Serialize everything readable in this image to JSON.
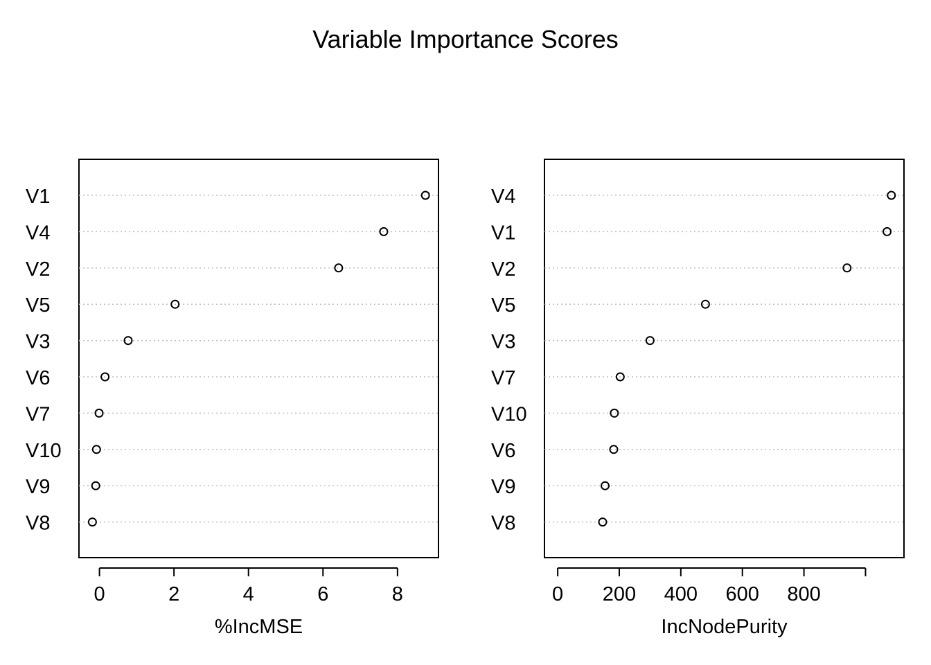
{
  "figure": {
    "title": "Variable Importance Scores"
  },
  "chart_data": [
    {
      "type": "scatter",
      "title": "",
      "xlabel": "%IncMSE",
      "ylabel": "",
      "categories": [
        "V1",
        "V4",
        "V2",
        "V5",
        "V3",
        "V6",
        "V7",
        "V10",
        "V9",
        "V8"
      ],
      "values": [
        8.75,
        7.63,
        6.42,
        2.03,
        0.77,
        0.15,
        -0.01,
        -0.08,
        -0.1,
        -0.19
      ],
      "xlim": [
        -0.55,
        9.1
      ],
      "xticks": [
        0,
        2,
        4,
        6,
        8
      ],
      "grid": "dotted horizontal per category",
      "marker": "open circle"
    },
    {
      "type": "scatter",
      "title": "",
      "xlabel": "IncNodePurity",
      "ylabel": "",
      "categories": [
        "V4",
        "V1",
        "V2",
        "V5",
        "V3",
        "V7",
        "V10",
        "V6",
        "V9",
        "V8"
      ],
      "values": [
        1084,
        1070,
        940,
        480,
        300,
        203,
        184,
        182,
        154,
        146
      ],
      "xlim": [
        -43,
        1125
      ],
      "xticks": [
        0,
        200,
        400,
        600,
        800,
        1000
      ],
      "xtick_labels": [
        "0",
        "200",
        "400",
        "600",
        "800",
        ""
      ],
      "grid": "dotted horizontal per category",
      "marker": "open circle"
    }
  ]
}
